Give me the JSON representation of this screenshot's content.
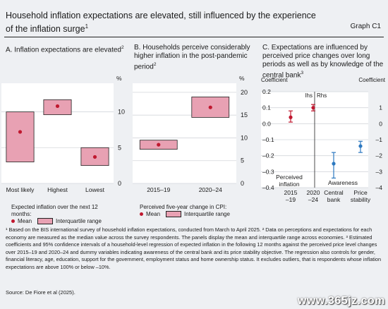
{
  "header": {
    "title_line1": "Household inflation expectations are elevated, still influenced by the experience",
    "title_line2": "of the inflation surge",
    "title_footnote": "1",
    "graph_label": "Graph C1"
  },
  "colors": {
    "mean": "#c0182f",
    "iqr_fill": "#e8a1b3",
    "inflation_point": "#c0182f",
    "awareness_point": "#2d79c0",
    "panel_bg": "#ffffff",
    "frame_bg": "#eef0f3"
  },
  "chart_data": [
    {
      "type": "range_bar",
      "panel_label": "A. Inflation expectations are elevated",
      "panel_footnote": "2",
      "unit": "%",
      "categories": [
        "Most likely",
        "Highest",
        "Lowest"
      ],
      "iqr_low": [
        3,
        9.6,
        2.5
      ],
      "iqr_high": [
        10,
        11.7,
        5
      ],
      "mean": [
        7.2,
        10.8,
        3.7
      ],
      "ylim": [
        0,
        14
      ],
      "yticks": [
        "0",
        "5",
        "10"
      ],
      "ytick_values": [
        0,
        5,
        10
      ],
      "grid": true,
      "legend_title": "Expected inflation over the next 12 months:",
      "legend": [
        "Mean",
        "Interquartile range"
      ]
    },
    {
      "type": "range_bar",
      "panel_label": "B. Households perceive considerably higher inflation in the post-pandemic period",
      "panel_footnote": "2",
      "unit": "%",
      "categories": [
        "2015–19",
        "2020–24"
      ],
      "iqr_low": [
        7.5,
        14.5
      ],
      "iqr_high": [
        9.5,
        19
      ],
      "mean": [
        8.5,
        16.7
      ],
      "ylim": [
        0,
        22
      ],
      "yticks": [
        "0",
        "5",
        "10",
        "15",
        "20"
      ],
      "ytick_values": [
        0,
        5,
        10,
        15,
        20
      ],
      "grid": true,
      "legend_title": "Perceived five-year change in CPI:",
      "legend": [
        "Mean",
        "Interquartile range"
      ]
    },
    {
      "type": "errorbar",
      "panel_label": "C. Expectations are influenced by perceived price changes over long periods as well as by knowledge of the central bank",
      "panel_footnote": "3",
      "left_axis_label": "Coefficient",
      "right_axis_label": "Coefficient",
      "lhs_label": "lhs",
      "rhs_label": "Rhs",
      "lhs_yticks": [
        "0.2",
        "0.1",
        "0.0",
        "–0.1",
        "–0.2",
        "–0.3",
        "–0.4"
      ],
      "lhs_ytick_values": [
        0.2,
        0.1,
        0.0,
        -0.1,
        -0.2,
        -0.3,
        -0.4
      ],
      "lhs_ylim": [
        -0.4,
        0.2
      ],
      "rhs_yticks": [
        "1",
        "0",
        "–1",
        "–2",
        "–3",
        "–4"
      ],
      "rhs_ytick_values": [
        1,
        0,
        -1,
        -2,
        -3,
        -4
      ],
      "rhs_ylim": [
        -4,
        2
      ],
      "groups": [
        "Perceived inflation",
        "Awareness"
      ],
      "lhs_points": [
        {
          "label_line1": "2015",
          "label_line2": "–19",
          "value": 0.04,
          "low": 0.01,
          "high": 0.08
        },
        {
          "label_line1": "2020",
          "label_line2": "–24",
          "value": 0.1,
          "low": 0.08,
          "high": 0.12
        }
      ],
      "rhs_points": [
        {
          "label_line1": "Central",
          "label_line2": "bank",
          "value": -2.5,
          "low": -3.4,
          "high": -1.8
        },
        {
          "label_line1": "Price",
          "label_line2": "stability",
          "value": -1.4,
          "low": -1.8,
          "high": -1.1
        }
      ],
      "grid": true
    }
  ],
  "footnotes": {
    "text": "¹  Based on the BIS international survey of household inflation expectations, conducted from March to April 2025.  ²  Data on perceptions and expectations for each economy are measured as the median value across the survey respondents. The panels display the mean and interquartile range across economies.  ³  Estimated coefficients and 95% confidence intervals of a household-level regression of expected inflation in the following 12 months against the perceived price level changes over 2015–19 and 2020–24 and dummy variables indicating awareness of the central bank and its price stability objective. The regression also controls for gender, financial literacy, age, education, support for the government, employment status and home ownership status. It excludes outliers, that is respondents whose inflation expectations are above 100% or below –10%.",
    "source": "Source: De Fiore et al (2025)."
  },
  "watermark": "www.365jz.com"
}
